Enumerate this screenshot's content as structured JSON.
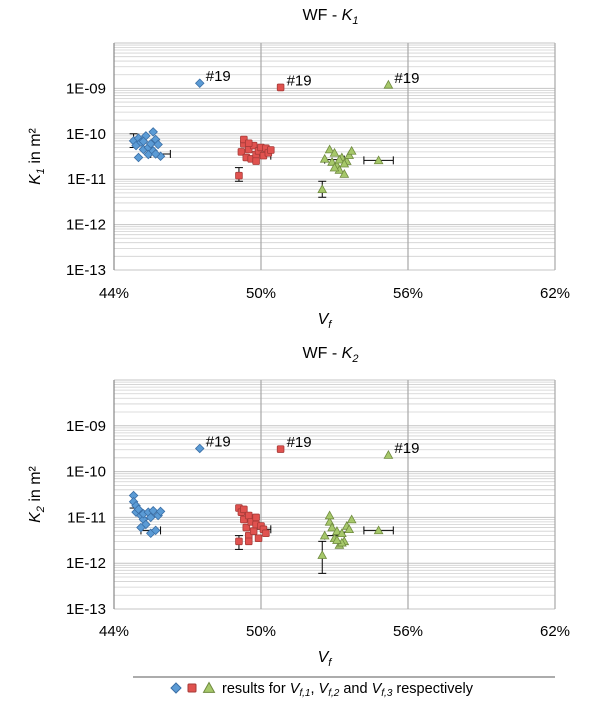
{
  "colors": {
    "s1": "#5b9bd5",
    "s1_edge": "#3a6ea5",
    "s2": "#e0524f",
    "s2_edge": "#a63a37",
    "s3": "#a6c86a",
    "s3_edge": "#6f8a3f",
    "grid": "#d0d0d0",
    "grid_major": "#c4c4c4",
    "vline": "#a8a8a8",
    "errorbar": "#000000"
  },
  "legend": {
    "markers": [
      "blue-diamond-icon",
      "red-square-icon",
      "green-triangle-icon"
    ],
    "text_a": "results for ",
    "v1": "V",
    "v1_sub": "f,1",
    "sep1": ", ",
    "v2": "V",
    "v2_sub": "f,2",
    "sep2": " and ",
    "v3": "V",
    "v3_sub": "f,3",
    "text_b": " respectively"
  },
  "chart_data": [
    {
      "type": "scatter",
      "title_prefix": "WF - ",
      "title_var": "K",
      "title_sub": "1",
      "xlabel_var": "V",
      "xlabel_sub": "f",
      "ylabel_var": "K",
      "ylabel_sub": "1",
      "ylabel_suffix": " in m²",
      "xlim": [
        0.44,
        0.62
      ],
      "ylim": [
        1e-13,
        1e-08
      ],
      "yscale": "log",
      "xticks": [
        0.44,
        0.5,
        0.56,
        0.62
      ],
      "xtick_labels": [
        "44%",
        "50%",
        "56%",
        "62%"
      ],
      "yticks": [
        1e-13,
        1e-12,
        1e-11,
        1e-10,
        1e-09
      ],
      "ytick_labels": [
        "1E-13",
        "1E-12",
        "1E-11",
        "1E-10",
        "1E-09"
      ],
      "grid": true,
      "series": [
        {
          "marker": "diamond",
          "points": [
            [
              0.448,
              7e-11
            ],
            [
              0.449,
              5.5e-11
            ],
            [
              0.45,
              8e-11
            ],
            [
              0.451,
              6.5e-11
            ],
            [
              0.45,
              3e-11
            ],
            [
              0.452,
              4.5e-11
            ],
            [
              0.453,
              9e-11
            ],
            [
              0.454,
              5e-11
            ],
            [
              0.455,
              6e-11
            ],
            [
              0.454,
              3.5e-11
            ],
            [
              0.456,
              1.1e-10
            ],
            [
              0.456,
              4.2e-11
            ],
            [
              0.457,
              7.5e-11
            ],
            [
              0.458,
              5.8e-11
            ],
            [
              0.459,
              3.2e-11
            ],
            [
              0.452,
              6.8e-11
            ],
            [
              0.457,
              3.6e-11
            ]
          ],
          "errorbars": [
            {
              "x": 0.459,
              "y": 3.6e-11,
              "xerr": 0.004,
              "yerr_low": 0,
              "yerr_high": 0
            },
            {
              "x": 0.448,
              "y": 7e-11,
              "xerr": 0,
              "yerr_low": 2e-11,
              "yerr_high": 3e-11
            }
          ],
          "outlier": {
            "x": 0.475,
            "y": 1.3e-09,
            "label": "#19"
          }
        },
        {
          "marker": "square",
          "points": [
            [
              0.491,
              1.2e-11
            ],
            [
              0.492,
              4e-11
            ],
            [
              0.493,
              6e-11
            ],
            [
              0.493,
              7.5e-11
            ],
            [
              0.494,
              3e-11
            ],
            [
              0.495,
              4.5e-11
            ],
            [
              0.496,
              2.8e-11
            ],
            [
              0.497,
              5.5e-11
            ],
            [
              0.498,
              3.5e-11
            ],
            [
              0.499,
              4.2e-11
            ],
            [
              0.5,
              5e-11
            ],
            [
              0.501,
              3.3e-11
            ],
            [
              0.502,
              4.8e-11
            ],
            [
              0.503,
              3.8e-11
            ],
            [
              0.504,
              4.4e-11
            ],
            [
              0.495,
              6.2e-11
            ],
            [
              0.498,
              2.5e-11
            ]
          ],
          "errorbars": [
            {
              "x": 0.491,
              "y": 1.2e-11,
              "xerr": 0,
              "yerr_low": 3e-12,
              "yerr_high": 6e-12
            },
            {
              "x": 0.501,
              "y": 3.3e-11,
              "xerr": 0.003,
              "yerr_low": 0,
              "yerr_high": 0
            }
          ],
          "outlier": {
            "x": 0.508,
            "y": 1.05e-09,
            "label": "#19"
          }
        },
        {
          "marker": "triangle",
          "points": [
            [
              0.525,
              6e-12
            ],
            [
              0.526,
              2.8e-11
            ],
            [
              0.528,
              4.5e-11
            ],
            [
              0.529,
              2.4e-11
            ],
            [
              0.53,
              3.8e-11
            ],
            [
              0.531,
              2e-11
            ],
            [
              0.532,
              1.6e-11
            ],
            [
              0.533,
              3e-11
            ],
            [
              0.534,
              1.3e-11
            ],
            [
              0.535,
              2.5e-11
            ],
            [
              0.536,
              3.4e-11
            ],
            [
              0.537,
              4.2e-11
            ],
            [
              0.532,
              2.7e-11
            ],
            [
              0.53,
              1.8e-11
            ],
            [
              0.534,
              2.2e-11
            ],
            [
              0.548,
              2.6e-11
            ]
          ],
          "errorbars": [
            {
              "x": 0.525,
              "y": 6e-12,
              "xerr": 0,
              "yerr_low": 2e-12,
              "yerr_high": 3e-12
            },
            {
              "x": 0.53,
              "y": 2.7e-11,
              "xerr": 0.004,
              "yerr_low": 0,
              "yerr_high": 0
            },
            {
              "x": 0.548,
              "y": 2.6e-11,
              "xerr": 0.006,
              "yerr_low": 0,
              "yerr_high": 0
            }
          ],
          "outlier": {
            "x": 0.552,
            "y": 1.2e-09,
            "label": "#19"
          }
        }
      ]
    },
    {
      "type": "scatter",
      "title_prefix": "WF - ",
      "title_var": "K",
      "title_sub": "2",
      "xlabel_var": "V",
      "xlabel_sub": "f",
      "ylabel_var": "K",
      "ylabel_sub": "2",
      "ylabel_suffix": " in m²",
      "xlim": [
        0.44,
        0.62
      ],
      "ylim": [
        1e-13,
        1e-08
      ],
      "yscale": "log",
      "xticks": [
        0.44,
        0.5,
        0.56,
        0.62
      ],
      "xtick_labels": [
        "44%",
        "50%",
        "56%",
        "62%"
      ],
      "yticks": [
        1e-13,
        1e-12,
        1e-11,
        1e-10,
        1e-09
      ],
      "ytick_labels": [
        "1E-13",
        "1E-12",
        "1E-11",
        "1E-10",
        "1E-09"
      ],
      "grid": true,
      "series": [
        {
          "marker": "diamond",
          "points": [
            [
              0.448,
              3e-11
            ],
            [
              0.448,
              2.2e-11
            ],
            [
              0.449,
              1.8e-11
            ],
            [
              0.449,
              1.3e-11
            ],
            [
              0.45,
              1.5e-11
            ],
            [
              0.451,
              1.1e-11
            ],
            [
              0.452,
              9e-12
            ],
            [
              0.452,
              1.2e-11
            ],
            [
              0.453,
              7e-12
            ],
            [
              0.454,
              1.3e-11
            ],
            [
              0.455,
              1e-11
            ],
            [
              0.455,
              4.5e-12
            ],
            [
              0.456,
              1.4e-11
            ],
            [
              0.457,
              5.2e-12
            ],
            [
              0.458,
              1.1e-11
            ],
            [
              0.459,
              1.35e-11
            ],
            [
              0.451,
              6e-12
            ]
          ],
          "errorbars": [
            {
              "x": 0.455,
              "y": 5.2e-12,
              "xerr": 0.004,
              "yerr_low": 0,
              "yerr_high": 0
            },
            {
              "x": 0.448,
              "y": 2.2e-11,
              "xerr": 0,
              "yerr_low": 6e-12,
              "yerr_high": 8e-12
            }
          ],
          "outlier": {
            "x": 0.475,
            "y": 3.2e-10,
            "label": "#19"
          }
        },
        {
          "marker": "square",
          "points": [
            [
              0.491,
              3e-12
            ],
            [
              0.491,
              1.6e-11
            ],
            [
              0.492,
              1.3e-11
            ],
            [
              0.493,
              1.5e-11
            ],
            [
              0.493,
              9e-12
            ],
            [
              0.494,
              6e-12
            ],
            [
              0.495,
              1.1e-11
            ],
            [
              0.495,
              4e-12
            ],
            [
              0.496,
              8e-12
            ],
            [
              0.497,
              5e-12
            ],
            [
              0.498,
              7e-12
            ],
            [
              0.499,
              3.5e-12
            ],
            [
              0.5,
              6.5e-12
            ],
            [
              0.501,
              5.5e-12
            ],
            [
              0.502,
              4.5e-12
            ],
            [
              0.498,
              1e-11
            ],
            [
              0.495,
              3e-12
            ]
          ],
          "errorbars": [
            {
              "x": 0.491,
              "y": 3e-12,
              "xerr": 0,
              "yerr_low": 1e-12,
              "yerr_high": 1e-12
            },
            {
              "x": 0.501,
              "y": 5.5e-12,
              "xerr": 0.003,
              "yerr_low": 0,
              "yerr_high": 0
            }
          ],
          "outlier": {
            "x": 0.508,
            "y": 3.1e-10,
            "label": "#19"
          }
        },
        {
          "marker": "triangle",
          "points": [
            [
              0.525,
              1.5e-12
            ],
            [
              0.526,
              4e-12
            ],
            [
              0.528,
              8e-12
            ],
            [
              0.528,
              1.1e-11
            ],
            [
              0.529,
              6e-12
            ],
            [
              0.53,
              3.5e-12
            ],
            [
              0.531,
              5e-12
            ],
            [
              0.532,
              2.5e-12
            ],
            [
              0.533,
              4.5e-12
            ],
            [
              0.534,
              3e-12
            ],
            [
              0.535,
              6.5e-12
            ],
            [
              0.536,
              5.5e-12
            ],
            [
              0.537,
              9e-12
            ],
            [
              0.533,
              2.8e-12
            ],
            [
              0.531,
              3.2e-12
            ],
            [
              0.548,
              5.2e-12
            ]
          ],
          "errorbars": [
            {
              "x": 0.525,
              "y": 1.5e-12,
              "xerr": 0,
              "yerr_low": 9e-13,
              "yerr_high": 1.5e-12
            },
            {
              "x": 0.53,
              "y": 4e-12,
              "xerr": 0.004,
              "yerr_low": 0,
              "yerr_high": 0
            },
            {
              "x": 0.548,
              "y": 5.2e-12,
              "xerr": 0.006,
              "yerr_low": 0,
              "yerr_high": 0
            }
          ],
          "outlier": {
            "x": 0.552,
            "y": 2.3e-10,
            "label": "#19"
          }
        }
      ]
    }
  ]
}
